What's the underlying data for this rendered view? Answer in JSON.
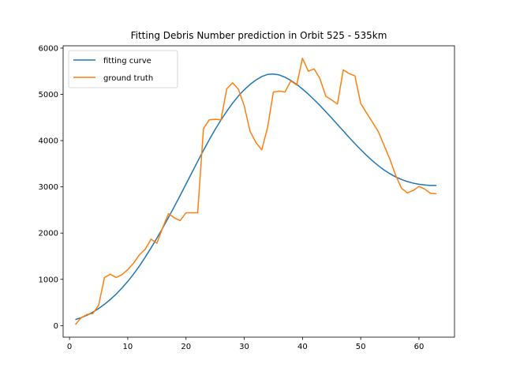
{
  "chart_data": {
    "type": "line",
    "title": "Fitting Debris Number prediction in Orbit 525 - 535km",
    "xlabel": "",
    "ylabel": "",
    "xlim": [
      -1.1,
      66.1
    ],
    "ylim": [
      -250,
      6050
    ],
    "xticks": [
      0,
      10,
      20,
      30,
      40,
      50,
      60
    ],
    "yticks": [
      0,
      1000,
      2000,
      3000,
      4000,
      5000,
      6000
    ],
    "grid": false,
    "legend_position": "upper-left",
    "series": [
      {
        "name": "fitting curve",
        "color": "#1f77b4",
        "x": [
          1,
          2,
          3,
          4,
          5,
          6,
          7,
          8,
          9,
          10,
          11,
          12,
          13,
          14,
          15,
          16,
          17,
          18,
          19,
          20,
          21,
          22,
          23,
          24,
          25,
          26,
          27,
          28,
          29,
          30,
          31,
          32,
          33,
          34,
          35,
          36,
          37,
          38,
          39,
          40,
          41,
          42,
          43,
          44,
          45,
          46,
          47,
          48,
          49,
          50,
          51,
          52,
          53,
          54,
          55,
          56,
          57,
          58,
          59,
          60,
          61,
          62,
          63
        ],
        "y": [
          130,
          170,
          225,
          290,
          370,
          460,
          565,
          680,
          810,
          955,
          1115,
          1290,
          1480,
          1680,
          1890,
          2110,
          2340,
          2575,
          2815,
          3060,
          3305,
          3550,
          3790,
          4020,
          4240,
          4445,
          4635,
          4810,
          4965,
          5100,
          5215,
          5310,
          5385,
          5430,
          5440,
          5420,
          5370,
          5300,
          5215,
          5115,
          5005,
          4885,
          4760,
          4625,
          4490,
          4350,
          4210,
          4070,
          3935,
          3805,
          3680,
          3565,
          3460,
          3365,
          3285,
          3215,
          3160,
          3115,
          3080,
          3055,
          3040,
          3030,
          3030
        ]
      },
      {
        "name": "ground truth",
        "color": "#ff7f0e",
        "x": [
          1,
          2,
          3,
          4,
          5,
          6,
          7,
          8,
          9,
          10,
          11,
          12,
          13,
          14,
          15,
          16,
          17,
          18,
          19,
          20,
          21,
          22,
          23,
          24,
          25,
          26,
          27,
          28,
          29,
          30,
          31,
          32,
          33,
          34,
          35,
          36,
          37,
          38,
          39,
          40,
          41,
          42,
          43,
          44,
          45,
          46,
          47,
          48,
          49,
          50,
          51,
          52,
          53,
          54,
          55,
          56,
          57,
          58,
          59,
          60,
          61,
          62,
          63
        ],
        "y": [
          20,
          170,
          240,
          260,
          440,
          1040,
          1110,
          1040,
          1100,
          1210,
          1350,
          1530,
          1650,
          1870,
          1780,
          2120,
          2420,
          2330,
          2270,
          2440,
          2440,
          2440,
          4260,
          4450,
          4460,
          4450,
          5120,
          5250,
          5110,
          4750,
          4200,
          3960,
          3800,
          4280,
          5050,
          5070,
          5050,
          5290,
          5200,
          5780,
          5500,
          5550,
          5340,
          4960,
          4880,
          4790,
          5530,
          5450,
          5400,
          4800,
          4600,
          4400,
          4200,
          3900,
          3600,
          3250,
          2970,
          2870,
          2920,
          3010,
          2950,
          2860,
          2850
        ]
      }
    ]
  }
}
